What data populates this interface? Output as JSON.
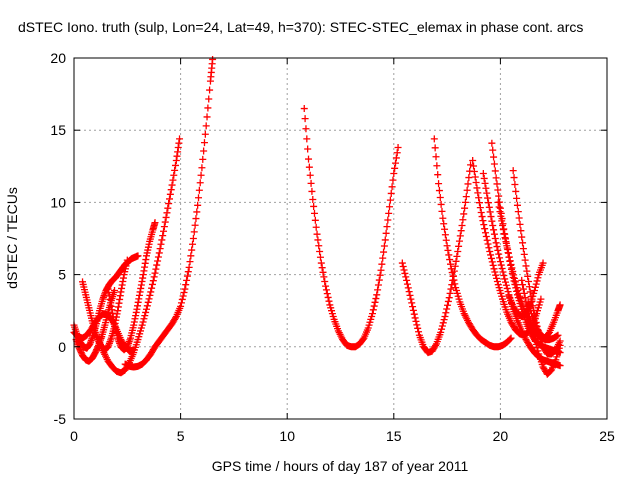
{
  "chart_data": {
    "type": "scatter",
    "title": "dSTEC Iono. truth (sulp, Lon=24, Lat=49, h=370): STEC-STEC_elemax in phase cont. arcs",
    "xlabel": "GPS time / hours of day 187 of year 2011",
    "ylabel": "dSTEC  / TECUs",
    "xlim": [
      0,
      25
    ],
    "ylim": [
      -5,
      20
    ],
    "xticks": [
      "0",
      "5",
      "10",
      "15",
      "20",
      "25"
    ],
    "yticks": [
      "-5",
      "0",
      "5",
      "10",
      "15",
      "20"
    ],
    "grid": true,
    "marker": "plus",
    "color": "#ff0000",
    "series": [
      {
        "x": [
          0.0,
          0.15,
          0.3,
          0.45,
          0.6,
          0.75,
          0.9,
          1.05,
          1.2,
          1.35,
          1.5,
          1.65,
          1.8,
          1.95,
          2.1,
          2.25,
          2.4,
          2.55,
          2.7,
          2.85,
          3.0
        ],
        "y": [
          1.5,
          0.8,
          0.3,
          0.0,
          -0.1,
          0.2,
          0.8,
          1.6,
          2.5,
          3.3,
          3.9,
          4.3,
          4.6,
          4.8,
          5.1,
          5.4,
          5.7,
          5.9,
          6.1,
          6.2,
          6.3
        ]
      },
      {
        "x": [
          0.1,
          0.25,
          0.4,
          0.55,
          0.7,
          0.85,
          1.0,
          1.15,
          1.3,
          1.45,
          1.6,
          1.75,
          1.9
        ],
        "y": [
          0.5,
          -0.1,
          -0.6,
          -0.9,
          -1.0,
          -0.8,
          -0.4,
          0.1,
          0.7,
          1.5,
          2.4,
          3.2,
          3.9
        ]
      },
      {
        "x": [
          0.4,
          0.55,
          0.7,
          0.85,
          1.0,
          1.15,
          1.3,
          1.45,
          1.6,
          1.75,
          1.9,
          2.05,
          2.2,
          2.35,
          2.5
        ],
        "y": [
          4.5,
          3.6,
          2.7,
          1.8,
          1.0,
          0.4,
          0.0,
          -0.2,
          0.0,
          0.6,
          1.4,
          2.5,
          3.8,
          5.0,
          6.0
        ]
      },
      {
        "x": [
          0.0,
          0.2,
          0.4,
          0.6,
          0.8,
          1.0,
          1.2,
          1.4,
          1.6,
          1.8,
          2.0,
          2.2,
          2.4,
          2.6,
          2.8
        ],
        "y": [
          1.0,
          0.7,
          0.6,
          0.8,
          1.2,
          1.7,
          2.1,
          2.3,
          2.2,
          1.8,
          1.2,
          0.5,
          0.0,
          -0.3,
          -0.2
        ]
      },
      {
        "x": [
          1.6,
          1.75,
          1.9,
          2.05,
          2.2,
          2.35,
          2.5,
          2.65,
          2.8,
          2.95,
          3.1,
          3.25,
          3.4,
          3.55,
          3.7,
          3.8
        ],
        "y": [
          4.0,
          2.8,
          1.6,
          0.6,
          0.0,
          -0.2,
          0.0,
          0.6,
          1.5,
          2.6,
          3.8,
          5.0,
          6.3,
          7.3,
          8.1,
          8.6
        ]
      },
      {
        "x": [
          1.2,
          1.4,
          1.6,
          1.8,
          2.0,
          2.2,
          2.4,
          2.6,
          2.8,
          3.0,
          3.2,
          3.4,
          3.6,
          3.8,
          4.0,
          4.2,
          4.4,
          4.6,
          4.8,
          4.95
        ],
        "y": [
          0.3,
          -0.4,
          -1.0,
          -1.4,
          -1.7,
          -1.8,
          -1.6,
          -1.1,
          -0.4,
          0.5,
          1.5,
          2.6,
          3.8,
          5.1,
          6.5,
          8.0,
          9.6,
          11.2,
          12.9,
          14.4
        ]
      },
      {
        "x": [
          2.4,
          2.6,
          2.8,
          3.0,
          3.2,
          3.4,
          3.6,
          3.8,
          4.0,
          4.2,
          4.4,
          4.6,
          4.8,
          5.0,
          5.2,
          5.4,
          5.6,
          5.8,
          6.0,
          6.2,
          6.4,
          6.5
        ],
        "y": [
          -1.2,
          -1.35,
          -1.4,
          -1.35,
          -1.2,
          -0.9,
          -0.5,
          0.0,
          0.4,
          0.8,
          1.2,
          1.6,
          2.1,
          2.8,
          4.0,
          5.5,
          7.5,
          9.8,
          12.4,
          15.3,
          18.4,
          19.9
        ]
      },
      {
        "x": [
          10.8,
          11.0,
          11.2,
          11.4,
          11.6,
          11.8,
          12.0,
          12.2,
          12.4,
          12.6,
          12.8,
          13.0,
          13.2,
          13.4,
          13.6,
          13.8,
          14.0,
          14.2,
          14.4,
          14.6,
          14.8,
          15.0,
          15.2
        ],
        "y": [
          16.5,
          13.0,
          10.2,
          7.8,
          5.8,
          4.2,
          2.9,
          1.9,
          1.1,
          0.5,
          0.1,
          0.0,
          0.0,
          0.2,
          0.6,
          1.3,
          2.3,
          3.6,
          5.3,
          7.4,
          9.7,
          12.0,
          13.8
        ]
      },
      {
        "x": [
          15.4,
          15.6,
          15.8,
          16.0,
          16.2,
          16.4,
          16.6,
          16.8,
          17.0,
          17.2,
          17.4,
          17.6,
          17.8,
          18.0,
          18.2,
          18.4,
          18.6
        ],
        "y": [
          5.8,
          4.6,
          3.3,
          2.0,
          0.8,
          0.0,
          -0.4,
          -0.3,
          0.2,
          1.0,
          2.1,
          3.4,
          4.9,
          6.6,
          8.4,
          10.4,
          12.6
        ]
      },
      {
        "x": [
          16.9,
          17.1,
          17.3,
          17.5,
          17.7,
          17.9,
          18.1,
          18.3,
          18.5,
          18.7,
          18.9,
          19.1,
          19.3,
          19.5,
          19.7,
          19.9,
          20.1,
          20.3,
          20.5
        ],
        "y": [
          14.4,
          11.3,
          8.9,
          7.0,
          5.4,
          4.1,
          3.1,
          2.3,
          1.7,
          1.2,
          0.8,
          0.5,
          0.3,
          0.1,
          0.0,
          0.0,
          0.1,
          0.3,
          0.6
        ]
      },
      {
        "x": [
          18.7,
          18.9,
          19.1,
          19.3,
          19.5,
          19.7,
          19.9,
          20.1,
          20.3,
          20.5,
          20.7,
          20.9,
          21.1,
          21.3,
          21.5,
          21.7,
          21.9
        ],
        "y": [
          12.9,
          11.0,
          9.3,
          7.9,
          6.6,
          5.4,
          4.3,
          3.3,
          2.4,
          1.7,
          1.2,
          0.9,
          0.8,
          1.0,
          1.5,
          2.3,
          3.3
        ]
      },
      {
        "x": [
          19.2,
          19.4,
          19.6,
          19.8,
          20.0,
          20.2,
          20.4,
          20.6,
          20.8,
          21.0,
          21.2,
          21.4,
          21.6,
          21.8,
          22.0,
          22.2,
          22.4,
          22.6,
          22.8
        ],
        "y": [
          12.0,
          10.3,
          8.7,
          7.2,
          5.9,
          4.7,
          3.6,
          2.6,
          1.8,
          1.1,
          0.5,
          0.0,
          -0.4,
          -0.7,
          -0.9,
          -1.0,
          -1.1,
          -1.2,
          -1.3
        ]
      },
      {
        "x": [
          19.6,
          19.8,
          20.0,
          20.2,
          20.4,
          20.6,
          20.8,
          21.0,
          21.2,
          21.4,
          21.6,
          21.8,
          22.0,
          22.2,
          22.4,
          22.6,
          22.8
        ],
        "y": [
          14.1,
          11.7,
          9.6,
          7.8,
          6.2,
          4.8,
          3.6,
          2.6,
          1.7,
          1.0,
          0.5,
          0.2,
          0.0,
          -0.1,
          -0.2,
          -0.3,
          -0.4
        ]
      },
      {
        "x": [
          19.9,
          20.1,
          20.3,
          20.5,
          20.7,
          20.9,
          21.1,
          21.3,
          21.5,
          21.7,
          21.9,
          22.1,
          22.3,
          22.5,
          22.7
        ],
        "y": [
          10.0,
          8.4,
          7.0,
          5.7,
          4.5,
          3.5,
          2.6,
          1.9,
          1.3,
          0.9,
          0.6,
          0.5,
          0.5,
          0.6,
          0.8
        ]
      },
      {
        "x": [
          20.6,
          20.8,
          21.0,
          21.2,
          21.4,
          21.6,
          21.8,
          22.0,
          22.2,
          22.4,
          22.6,
          22.8
        ],
        "y": [
          12.2,
          9.8,
          7.6,
          5.6,
          3.8,
          2.2,
          0.9,
          0.0,
          -0.5,
          -0.5,
          -0.2,
          0.4
        ]
      },
      {
        "x": [
          21.0,
          21.2,
          21.4,
          21.6,
          21.8,
          22.0,
          22.2,
          22.4,
          22.6,
          22.8
        ],
        "y": [
          4.6,
          3.1,
          1.8,
          0.6,
          -0.5,
          -1.4,
          -1.9,
          -1.6,
          -0.9,
          0.1
        ]
      },
      {
        "x": [
          21.3,
          21.5,
          21.7,
          21.9,
          22.1,
          22.3,
          22.5,
          22.7,
          22.8
        ],
        "y": [
          3.1,
          2.1,
          1.3,
          0.8,
          0.6,
          1.0,
          1.7,
          2.5,
          2.9
        ]
      },
      {
        "x": [
          20.4,
          20.6,
          20.8,
          21.0,
          21.2,
          21.4,
          21.6,
          21.8,
          22.0
        ],
        "y": [
          3.5,
          2.8,
          2.3,
          2.1,
          2.3,
          2.9,
          3.9,
          5.0,
          5.8
        ]
      }
    ]
  }
}
